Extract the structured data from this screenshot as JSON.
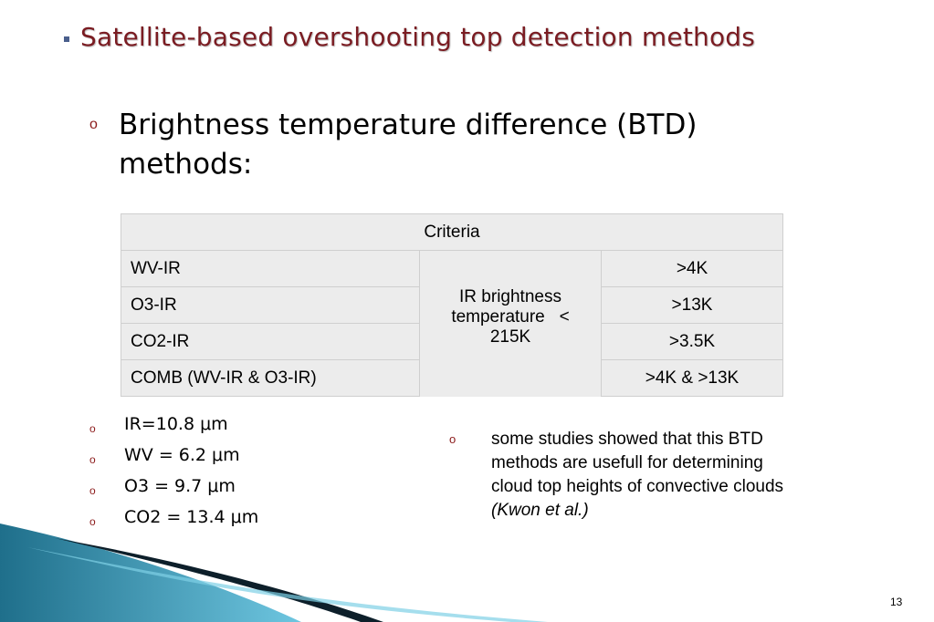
{
  "slide": {
    "title": "Satellite-based overshooting top detection methods",
    "heading": "Brightness temperature difference (BTD) methods:",
    "page_number": "13"
  },
  "table": {
    "header": "Criteria",
    "rows": [
      {
        "label": "WV-IR",
        "value": ">4K"
      },
      {
        "label": "O3-IR",
        "value": ">13K"
      },
      {
        "label": "CO2-IR",
        "value": ">3.5K"
      },
      {
        "label": "COMB (WV-IR & O3-IR)",
        "value": ">4K & >13K"
      }
    ],
    "merged": {
      "line1": "IR brightness",
      "line2": "temperature   <",
      "line3": "215K"
    }
  },
  "wavelengths": [
    "IR=10.8 μm",
    "WV = 6.2 μm",
    "O3 = 9.7 μm",
    "CO2 = 13.4 μm"
  ],
  "note": {
    "text": "some studies showed that this BTD methods are usefull for determining cloud top heights of convective clouds ",
    "citation": "(Kwon et al.)"
  },
  "colors": {
    "title": "#7a1c22",
    "bullet": "#8b1a1a",
    "table_fill": "#ececec",
    "wave_dark": "#1f6f8b",
    "wave_light": "#6ec6e0"
  }
}
